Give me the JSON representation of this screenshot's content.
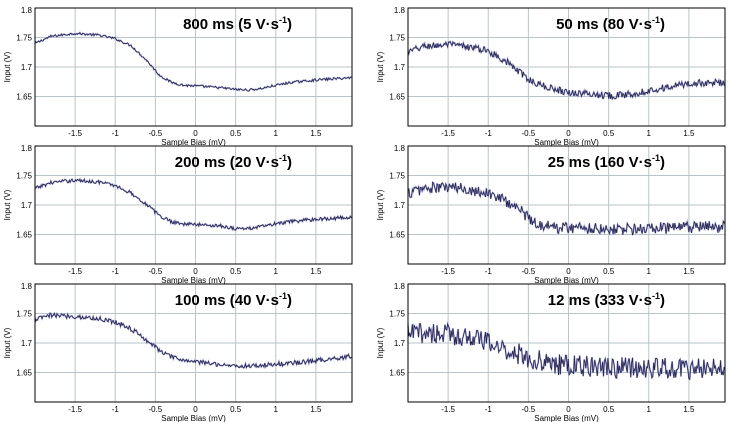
{
  "figure": {
    "colors": {
      "grid": "#b9c5c9",
      "frame": "#000000",
      "trace": "#26264e",
      "trace_highlight": "#6e6ec0"
    }
  },
  "chart_data": [
    {
      "type": "line",
      "title": "800 ms (5 V·s-1)",
      "title_parts": {
        "main": "800 ms (5 V·s",
        "sup": "-1",
        "close": ")"
      },
      "xlabel": "Sample Bias (mV)",
      "ylabel": "Input (V)",
      "xlim": [
        -2.0,
        1.95
      ],
      "ylim": [
        1.6,
        1.8
      ],
      "xticks": [
        -1.5,
        -1,
        -0.5,
        0,
        0.5,
        1,
        1.5
      ],
      "xticklabels": [
        "-1.5",
        "-1",
        "-0.5",
        "0",
        "0.5",
        "1",
        "1.5"
      ],
      "yticks": [
        1.65,
        1.7,
        1.75,
        1.8
      ],
      "yticklabels": [
        "1.65",
        "1.7",
        "1.75",
        "1.8"
      ],
      "grid": true,
      "noise": 0.002,
      "series": [
        {
          "x": [
            -2.0,
            -1.8,
            -1.5,
            -1.2,
            -1.0,
            -0.8,
            -0.6,
            -0.45,
            -0.3,
            -0.15,
            0.0,
            0.3,
            0.5,
            0.65,
            0.8,
            1.0,
            1.2,
            1.5,
            1.95
          ],
          "y": [
            1.74,
            1.752,
            1.757,
            1.754,
            1.748,
            1.736,
            1.71,
            1.686,
            1.674,
            1.669,
            1.668,
            1.665,
            1.662,
            1.661,
            1.663,
            1.669,
            1.674,
            1.678,
            1.682
          ]
        }
      ]
    },
    {
      "type": "line",
      "title": "50 ms (80 V·s-1)",
      "title_parts": {
        "main": "50 ms (80 V·s",
        "sup": "-1",
        "close": ")"
      },
      "xlabel": "Sample Bias (mV)",
      "ylabel": "Input (V)",
      "xlim": [
        -2.0,
        1.95
      ],
      "ylim": [
        1.6,
        1.8
      ],
      "xticks": [
        -1.5,
        -1,
        -0.5,
        0,
        0.5,
        1,
        1.5
      ],
      "xticklabels": [
        "-1.5",
        "-1",
        "-0.5",
        "0",
        "0.5",
        "1",
        "1.5"
      ],
      "yticks": [
        1.65,
        1.7,
        1.75,
        1.8
      ],
      "yticklabels": [
        "1.65",
        "1.7",
        "1.75",
        "1.8"
      ],
      "grid": true,
      "noise": 0.006,
      "series": [
        {
          "x": [
            -2.0,
            -1.8,
            -1.5,
            -1.2,
            -1.0,
            -0.8,
            -0.6,
            -0.45,
            -0.3,
            -0.15,
            0.0,
            0.3,
            0.5,
            0.65,
            0.8,
            1.0,
            1.2,
            1.5,
            1.95
          ],
          "y": [
            1.725,
            1.735,
            1.738,
            1.733,
            1.727,
            1.712,
            1.69,
            1.675,
            1.667,
            1.662,
            1.657,
            1.654,
            1.652,
            1.652,
            1.655,
            1.66,
            1.665,
            1.672,
            1.674
          ]
        }
      ]
    },
    {
      "type": "line",
      "title": "200 ms (20 V·s-1)",
      "title_parts": {
        "main": "200 ms (20 V·s",
        "sup": "-1",
        "close": ")"
      },
      "xlabel": "Sample Bias (mV)",
      "ylabel": "Input (V)",
      "xlim": [
        -2.0,
        1.95
      ],
      "ylim": [
        1.6,
        1.8
      ],
      "xticks": [
        -1.5,
        -1,
        -0.5,
        0,
        0.5,
        1,
        1.5
      ],
      "xticklabels": [
        "-1.5",
        "-1",
        "-0.5",
        "0",
        "0.5",
        "1",
        "1.5"
      ],
      "yticks": [
        1.65,
        1.7,
        1.75,
        1.8
      ],
      "yticklabels": [
        "1.65",
        "1.7",
        "1.75",
        "1.8"
      ],
      "grid": true,
      "noise": 0.003,
      "series": [
        {
          "x": [
            -2.0,
            -1.8,
            -1.5,
            -1.2,
            -1.0,
            -0.8,
            -0.6,
            -0.45,
            -0.3,
            -0.15,
            0.0,
            0.3,
            0.5,
            0.65,
            0.8,
            1.0,
            1.2,
            1.5,
            1.95
          ],
          "y": [
            1.728,
            1.738,
            1.742,
            1.739,
            1.733,
            1.72,
            1.7,
            1.682,
            1.672,
            1.668,
            1.667,
            1.665,
            1.66,
            1.66,
            1.663,
            1.668,
            1.672,
            1.676,
            1.679
          ]
        }
      ]
    },
    {
      "type": "line",
      "title": "25 ms (160 V·s-1)",
      "title_parts": {
        "main": "25 ms (160 V·s",
        "sup": "-1",
        "close": ")"
      },
      "xlabel": "Sample Bias (mV)",
      "ylabel": "Input (V)",
      "xlim": [
        -2.0,
        1.95
      ],
      "ylim": [
        1.6,
        1.8
      ],
      "xticks": [
        -1.5,
        -1,
        -0.5,
        0,
        0.5,
        1,
        1.5
      ],
      "xticklabels": [
        "-1.5",
        "-1",
        "-0.5",
        "0",
        "0.5",
        "1",
        "1.5"
      ],
      "yticks": [
        1.65,
        1.7,
        1.75,
        1.8
      ],
      "yticklabels": [
        "1.65",
        "1.7",
        "1.75",
        "1.8"
      ],
      "grid": true,
      "noise": 0.01,
      "series": [
        {
          "x": [
            -2.0,
            -1.8,
            -1.5,
            -1.2,
            -1.0,
            -0.8,
            -0.6,
            -0.45,
            -0.3,
            -0.15,
            0.0,
            0.3,
            0.5,
            0.65,
            0.8,
            1.0,
            1.2,
            1.5,
            1.95
          ],
          "y": [
            1.72,
            1.728,
            1.73,
            1.726,
            1.72,
            1.708,
            1.692,
            1.672,
            1.665,
            1.662,
            1.662,
            1.661,
            1.66,
            1.659,
            1.659,
            1.66,
            1.661,
            1.662,
            1.663
          ]
        }
      ]
    },
    {
      "type": "line",
      "title": "100 ms (40 V·s-1)",
      "title_parts": {
        "main": "100 ms (40 V·s",
        "sup": "-1",
        "close": ")"
      },
      "xlabel": "Sample Bias (mV)",
      "ylabel": "Input (V)",
      "xlim": [
        -2.0,
        1.95
      ],
      "ylim": [
        1.6,
        1.8
      ],
      "xticks": [
        -1.5,
        -1,
        -0.5,
        0,
        0.5,
        1,
        1.5
      ],
      "xticklabels": [
        "-1.5",
        "-1",
        "-0.5",
        "0",
        "0.5",
        "1",
        "1.5"
      ],
      "yticks": [
        1.65,
        1.7,
        1.75,
        1.8
      ],
      "yticklabels": [
        "1.65",
        "1.7",
        "1.75",
        "1.8"
      ],
      "grid": true,
      "noise": 0.004,
      "series": [
        {
          "x": [
            -2.0,
            -1.8,
            -1.5,
            -1.2,
            -1.0,
            -0.8,
            -0.6,
            -0.45,
            -0.3,
            -0.15,
            0.0,
            0.3,
            0.5,
            0.65,
            0.8,
            1.0,
            1.2,
            1.5,
            1.95
          ],
          "y": [
            1.74,
            1.747,
            1.745,
            1.741,
            1.736,
            1.724,
            1.704,
            1.688,
            1.676,
            1.671,
            1.668,
            1.664,
            1.661,
            1.661,
            1.662,
            1.664,
            1.666,
            1.67,
            1.678
          ]
        }
      ]
    },
    {
      "type": "line",
      "title": "12 ms (333 V·s-1)",
      "title_parts": {
        "main": "12 ms (333 V·s",
        "sup": "-1",
        "close": ")"
      },
      "xlabel": "Sample Bias (mV)",
      "ylabel": "Input (V)",
      "xlim": [
        -2.0,
        1.95
      ],
      "ylim": [
        1.6,
        1.8
      ],
      "xticks": [
        -1.5,
        -1,
        -0.5,
        0,
        0.5,
        1,
        1.5
      ],
      "xticklabels": [
        "-1.5",
        "-1",
        "-0.5",
        "0",
        "0.5",
        "1",
        "1.5"
      ],
      "yticks": [
        1.65,
        1.7,
        1.75,
        1.8
      ],
      "yticklabels": [
        "1.65",
        "1.7",
        "1.75",
        "1.8"
      ],
      "grid": true,
      "noise": 0.018,
      "series": [
        {
          "x": [
            -2.0,
            -1.8,
            -1.5,
            -1.2,
            -1.0,
            -0.8,
            -0.6,
            -0.45,
            -0.3,
            -0.15,
            0.0,
            0.3,
            0.5,
            0.65,
            0.8,
            1.0,
            1.2,
            1.5,
            1.95
          ],
          "y": [
            1.715,
            1.718,
            1.715,
            1.71,
            1.7,
            1.69,
            1.68,
            1.672,
            1.668,
            1.664,
            1.662,
            1.66,
            1.659,
            1.658,
            1.658,
            1.657,
            1.657,
            1.656,
            1.656
          ]
        }
      ]
    }
  ]
}
